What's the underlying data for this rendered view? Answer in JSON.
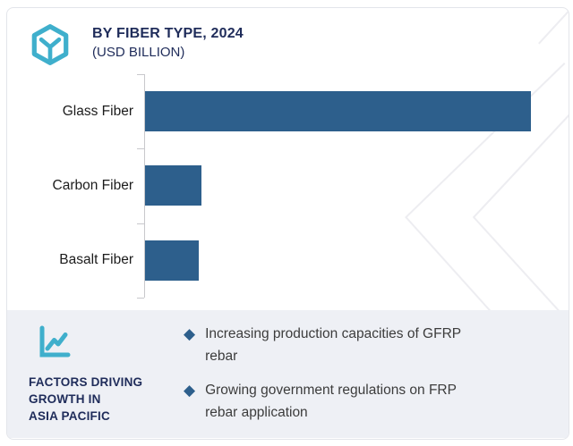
{
  "header": {
    "title": "BY FIBER TYPE, 2024",
    "subtitle": "(USD BILLION)",
    "icon": "hexagon-y-logo-icon"
  },
  "chart_data": {
    "type": "bar",
    "orientation": "horizontal",
    "title": "BY FIBER TYPE, 2024",
    "unit": "USD BILLION",
    "categories": [
      "Glass Fiber",
      "Carbon Fiber",
      "Basalt Fiber"
    ],
    "values_relative": [
      1.0,
      0.146,
      0.139
    ],
    "value_labels_shown": false,
    "axis_tick_labels_shown": false,
    "grid": false,
    "legend": false,
    "bar_color": "#2d5f8c",
    "note": "No numeric axis or data labels visible; values are relative bar lengths (Glass Fiber = 1.0)."
  },
  "factors_panel": {
    "icon": "line-chart-icon",
    "heading_lines": [
      "FACTORS DRIVING",
      "GROWTH IN",
      "ASIA PACIFIC"
    ],
    "heading_full": "FACTORS DRIVING GROWTH IN ASIA PACIFIC",
    "bullet_marker": "◆",
    "bullets": [
      "Increasing production capacities of GFRP rebar",
      "Growing government regulations on FRP rebar application"
    ]
  },
  "colors": {
    "bar_blue": "#2d5f8c",
    "navy_text": "#1f2c5a",
    "teal_accent": "#3fafcc",
    "panel_background": "#eef0f5",
    "card_border": "#e3e5ea",
    "axis_gray": "#c8c8cc",
    "watermark_gray": "#ededf1"
  }
}
